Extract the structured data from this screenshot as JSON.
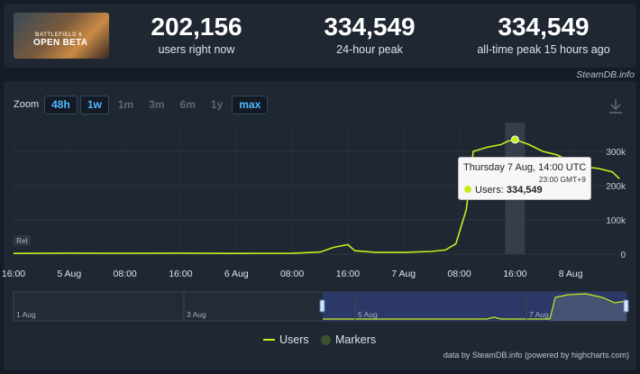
{
  "stats": {
    "thumbnail": {
      "caption_small": "BATTLEFIELD 6",
      "caption_big": "OPEN BETA"
    },
    "users_now": {
      "value": "202,156",
      "label": "users right now"
    },
    "peak_24h": {
      "value": "334,549",
      "label": "24-hour peak"
    },
    "all_time": {
      "value": "334,549",
      "label": "all-time peak 15 hours ago"
    },
    "site_tag": "SteamDB.info"
  },
  "zoom": {
    "label": "Zoom",
    "buttons": [
      {
        "label": "48h",
        "active": true
      },
      {
        "label": "1w",
        "active": true
      },
      {
        "label": "1m",
        "active": false
      },
      {
        "label": "3m",
        "active": false
      },
      {
        "label": "6m",
        "active": false
      },
      {
        "label": "1y",
        "active": false
      },
      {
        "label": "max",
        "active": true
      }
    ]
  },
  "chart_data": {
    "type": "line",
    "series": [
      {
        "name": "Users",
        "color": "#c6ee1a"
      }
    ],
    "x_axis_labels": [
      "16:00",
      "5 Aug",
      "08:00",
      "16:00",
      "6 Aug",
      "08:00",
      "16:00",
      "7 Aug",
      "08:00",
      "16:00",
      "8 Aug"
    ],
    "y_axis_labels": [
      "0",
      "100k",
      "200k",
      "300k"
    ],
    "ylim": [
      0,
      330000
    ],
    "points_hours_from_4aug_1600": [
      [
        0,
        2000
      ],
      [
        8,
        3000
      ],
      [
        16,
        2500
      ],
      [
        24,
        3000
      ],
      [
        32,
        2000
      ],
      [
        40,
        2500
      ],
      [
        44,
        6000
      ],
      [
        46,
        20000
      ],
      [
        48,
        28000
      ],
      [
        49,
        10000
      ],
      [
        52,
        5000
      ],
      [
        56,
        5000
      ],
      [
        60,
        8000
      ],
      [
        62,
        12000
      ],
      [
        63.5,
        30000
      ],
      [
        65,
        130000
      ],
      [
        66,
        300000
      ],
      [
        68,
        312000
      ],
      [
        70,
        320000
      ],
      [
        71,
        330000
      ],
      [
        72,
        334549
      ],
      [
        74,
        320000
      ],
      [
        76,
        300000
      ],
      [
        78,
        290000
      ],
      [
        80,
        270000
      ],
      [
        82,
        255000
      ],
      [
        84,
        250000
      ],
      [
        85,
        245000
      ],
      [
        86,
        240000
      ],
      [
        87,
        220000
      ]
    ],
    "crosshair_hour": 72,
    "rel_badge": "Rel",
    "tooltip": {
      "date": "Thursday 7 Aug, 14:00 UTC",
      "local": "23:00 GMT+9",
      "series": "Users",
      "value": "334,549"
    },
    "navigator_labels": [
      "1 Aug",
      "3 Aug",
      "5 Aug",
      "7 Aug"
    ],
    "legend": [
      {
        "name": "Users"
      },
      {
        "name": "Markers"
      }
    ]
  },
  "credit": "data by SteamDB.info (powered by highcharts.com)"
}
